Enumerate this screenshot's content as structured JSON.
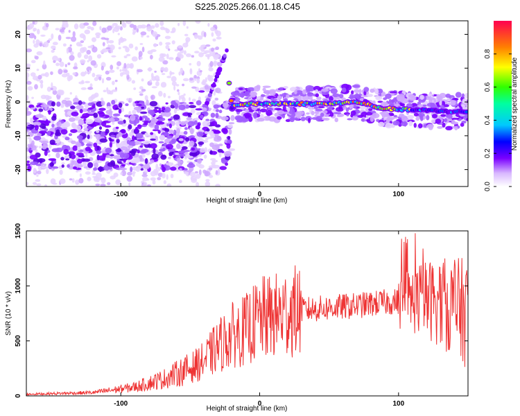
{
  "title": "S225.2025.266.01.18.C45",
  "colors": {
    "axis": "#000000",
    "snr_line": "#ee3333"
  },
  "chart_data": [
    {
      "type": "heatmap",
      "name": "spectrogram",
      "xlabel": "Height of straight line (km)",
      "ylabel": "Frequency (Hz)",
      "xlim": [
        -168,
        150
      ],
      "ylim": [
        -25,
        24
      ],
      "x_ticks": [
        -100,
        0,
        100
      ],
      "y_ticks": [
        -20,
        -10,
        0,
        10,
        20
      ],
      "colorbar": {
        "label": "Normalized spectral amplitude",
        "range": [
          0.0,
          1.0
        ],
        "ticks": [
          0.0,
          0.2,
          0.4,
          0.6,
          0.8
        ],
        "tick_labels": [
          "0.0",
          "0.2",
          "0.4",
          "0.6",
          "0.8"
        ]
      },
      "ridge": {
        "description_points": [
          {
            "x": -45,
            "freq": -8
          },
          {
            "x": -30,
            "freq": 10
          },
          {
            "x": -25,
            "freq": 15
          },
          {
            "x": -20,
            "freq": -1
          },
          {
            "x": 0,
            "freq": -0.5
          },
          {
            "x": 50,
            "freq": -0.5
          },
          {
            "x": 70,
            "freq": 0
          },
          {
            "x": 90,
            "freq": -2
          },
          {
            "x": 120,
            "freq": -2.5
          },
          {
            "x": 150,
            "freq": -3
          }
        ]
      }
    },
    {
      "type": "line",
      "name": "snr",
      "xlabel": "Height of straight line (km)",
      "ylabel": "SNR (10 * v/v)",
      "xlim": [
        -168,
        150
      ],
      "ylim": [
        0,
        1500
      ],
      "x_ticks": [
        -100,
        0,
        100
      ],
      "y_ticks": [
        0,
        500,
        1000,
        1500
      ],
      "envelope": {
        "x": [
          -168,
          -120,
          -90,
          -70,
          -50,
          -40,
          -30,
          -20,
          -10,
          0,
          10,
          20,
          30,
          50,
          70,
          90,
          100,
          110,
          120,
          130,
          140,
          150
        ],
        "y": [
          15,
          30,
          80,
          150,
          250,
          320,
          450,
          550,
          600,
          700,
          720,
          760,
          780,
          800,
          820,
          850,
          860,
          870,
          880,
          850,
          800,
          750
        ]
      }
    }
  ]
}
